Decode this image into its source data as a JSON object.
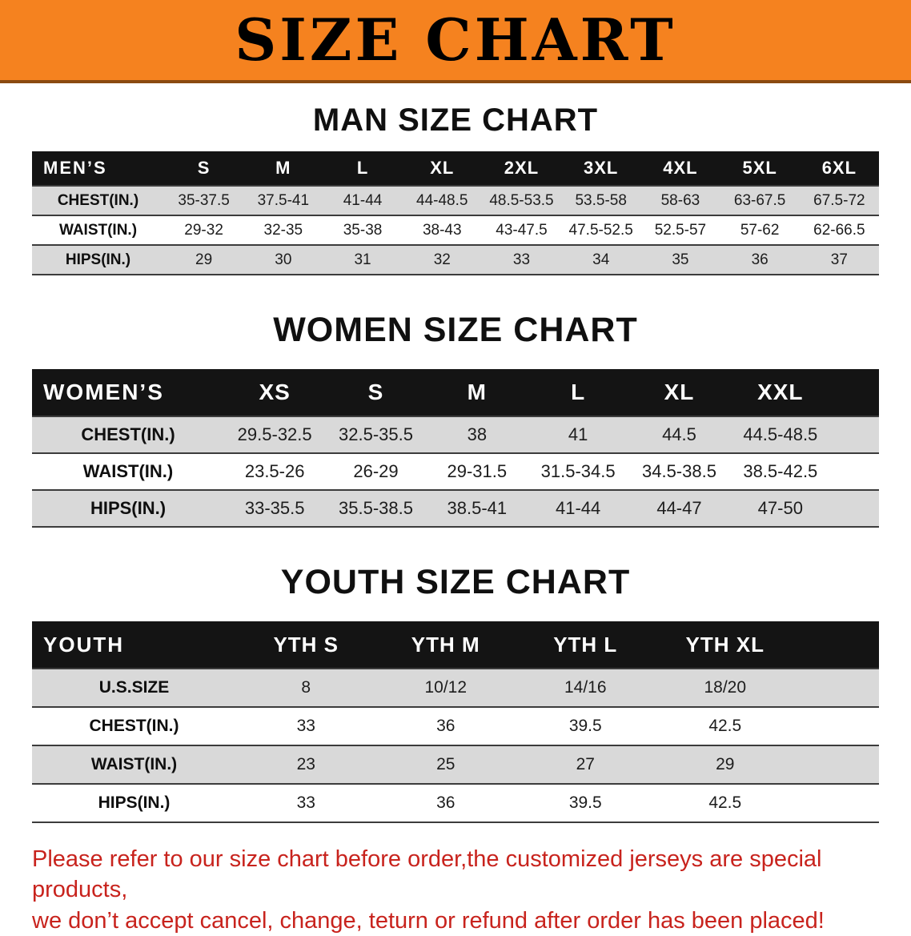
{
  "banner": {
    "title": "SIZE CHART",
    "bg_color": "#f5821f",
    "text_color": "#000000"
  },
  "chart_data": [
    {
      "type": "table",
      "title": "MAN SIZE CHART",
      "corner_label": "MEN’S",
      "columns": [
        "S",
        "M",
        "L",
        "XL",
        "2XL",
        "3XL",
        "4XL",
        "5XL",
        "6XL"
      ],
      "rows": [
        {
          "label": "CHEST(IN.)",
          "values": [
            "35-37.5",
            "37.5-41",
            "41-44",
            "44-48.5",
            "48.5-53.5",
            "53.5-58",
            "58-63",
            "63-67.5",
            "67.5-72"
          ]
        },
        {
          "label": "WAIST(IN.)",
          "values": [
            "29-32",
            "32-35",
            "35-38",
            "38-43",
            "43-47.5",
            "47.5-52.5",
            "52.5-57",
            "57-62",
            "62-66.5"
          ]
        },
        {
          "label": "HIPS(IN.)",
          "values": [
            "29",
            "30",
            "31",
            "32",
            "33",
            "34",
            "35",
            "36",
            "37"
          ]
        }
      ]
    },
    {
      "type": "table",
      "title": "WOMEN SIZE CHART",
      "corner_label": "WOMEN’S",
      "columns": [
        "XS",
        "S",
        "M",
        "L",
        "XL",
        "XXL"
      ],
      "rows": [
        {
          "label": "CHEST(IN.)",
          "values": [
            "29.5-32.5",
            "32.5-35.5",
            "38",
            "41",
            "44.5",
            "44.5-48.5"
          ]
        },
        {
          "label": "WAIST(IN.)",
          "values": [
            "23.5-26",
            "26-29",
            "29-31.5",
            "31.5-34.5",
            "34.5-38.5",
            "38.5-42.5"
          ]
        },
        {
          "label": "HIPS(IN.)",
          "values": [
            "33-35.5",
            "35.5-38.5",
            "38.5-41",
            "41-44",
            "44-47",
            "47-50"
          ]
        }
      ]
    },
    {
      "type": "table",
      "title": "YOUTH SIZE CHART",
      "corner_label": "YOUTH",
      "columns": [
        "YTH S",
        "YTH M",
        "YTH L",
        "YTH XL"
      ],
      "rows": [
        {
          "label": "U.S.SIZE",
          "values": [
            "8",
            "10/12",
            "14/16",
            "18/20"
          ]
        },
        {
          "label": "CHEST(IN.)",
          "values": [
            "33",
            "36",
            "39.5",
            "42.5"
          ]
        },
        {
          "label": "WAIST(IN.)",
          "values": [
            "23",
            "25",
            "27",
            "29"
          ]
        },
        {
          "label": "HIPS(IN.)",
          "values": [
            "33",
            "36",
            "39.5",
            "42.5"
          ]
        }
      ]
    }
  ],
  "footer": {
    "line1": "Please refer to our size chart before order,the customized jerseys are special products,",
    "line2": "we don’t accept cancel, change, teturn or refund after order has been placed!",
    "text_color": "#c8231d"
  },
  "colors": {
    "banner_orange": "#f5821f",
    "header_row_bg": "#141414",
    "shaded_row_bg": "#d9d9d9",
    "row_divider": "#3c3c3c",
    "footer_red": "#c8231d"
  }
}
